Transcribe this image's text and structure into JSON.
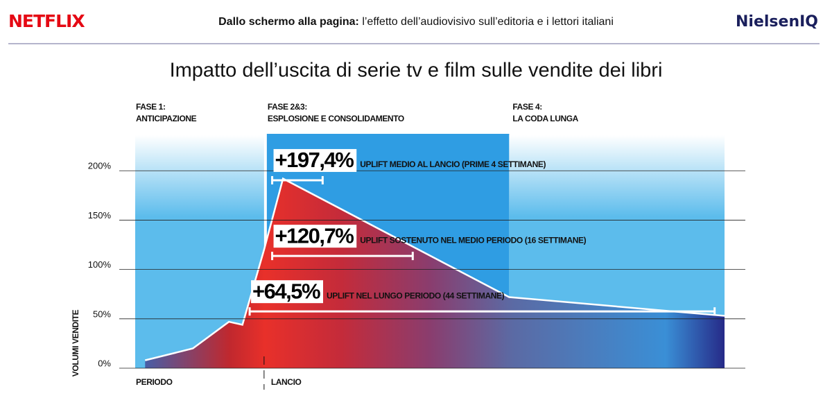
{
  "header": {
    "logo_left": "NETFLIX",
    "subtitle_bold": "Dallo schermo alla pagina:",
    "subtitle": "l’effetto dell’audiovisivo sull’editoria e i lettori italiani",
    "logo_right": "NielsenIQ"
  },
  "chart_data": {
    "type": "area",
    "title": "Impatto dell’uscita di serie tv e film sulle vendite dei libri",
    "y_label": "VOLUMI VENDITE",
    "x_label": "PERIODO",
    "x": [
      -13.2,
      -7.9,
      -3.9,
      -2.4,
      0,
      2.1,
      27.2,
      51.1
    ],
    "series": [
      {
        "values": [
          8,
          20,
          47,
          44,
          120,
          192,
          72,
          53
        ]
      }
    ],
    "xlim": [
      -14.3,
      51.1
    ],
    "ylim": [
      0,
      236
    ],
    "yticks": [
      {
        "value": 0,
        "label": "0%"
      },
      {
        "value": 50,
        "label": "50%"
      },
      {
        "value": 100,
        "label": "100%"
      },
      {
        "value": 150,
        "label": "150%"
      },
      {
        "value": 200,
        "label": "200%"
      }
    ],
    "grid": true,
    "markers": [
      {
        "x": 0,
        "label": "LANCIO"
      }
    ],
    "phases": [
      {
        "title": "FASE 1:",
        "subtitle": "ANTICIPAZIONE",
        "range": [
          -14.3,
          0
        ],
        "color": "#5cbcec"
      },
      {
        "title": "FASE 2&3:",
        "subtitle": "ESPLOSIONE E CONSOLIDAMENTO",
        "range": [
          0,
          27.2
        ],
        "color": "#2f9de3"
      },
      {
        "title": "FASE 4:",
        "subtitle": "LA CODA LUNGA",
        "range": [
          27.2,
          51.1
        ],
        "color": "#5cbcec"
      }
    ],
    "annotations": [
      {
        "value": 197.4,
        "label": "+197,4%",
        "text": "UPLIFT MEDIO AL LANCIO (PRIME 4 SETTIMANE)",
        "range": [
          0.9,
          6.5
        ]
      },
      {
        "value": 120.7,
        "label": "+120,7%",
        "text": "UPLIFT SOSTENUTO NEL MEDIO PERIODO (16 SETTIMANE)",
        "range": [
          0.9,
          16.5
        ]
      },
      {
        "value": 64.5,
        "label": "+64,5%",
        "text": "UPLIFT NEL LUNGO PERIODO (44 SETTIMANE)",
        "range": [
          -1.6,
          50
        ]
      }
    ]
  }
}
